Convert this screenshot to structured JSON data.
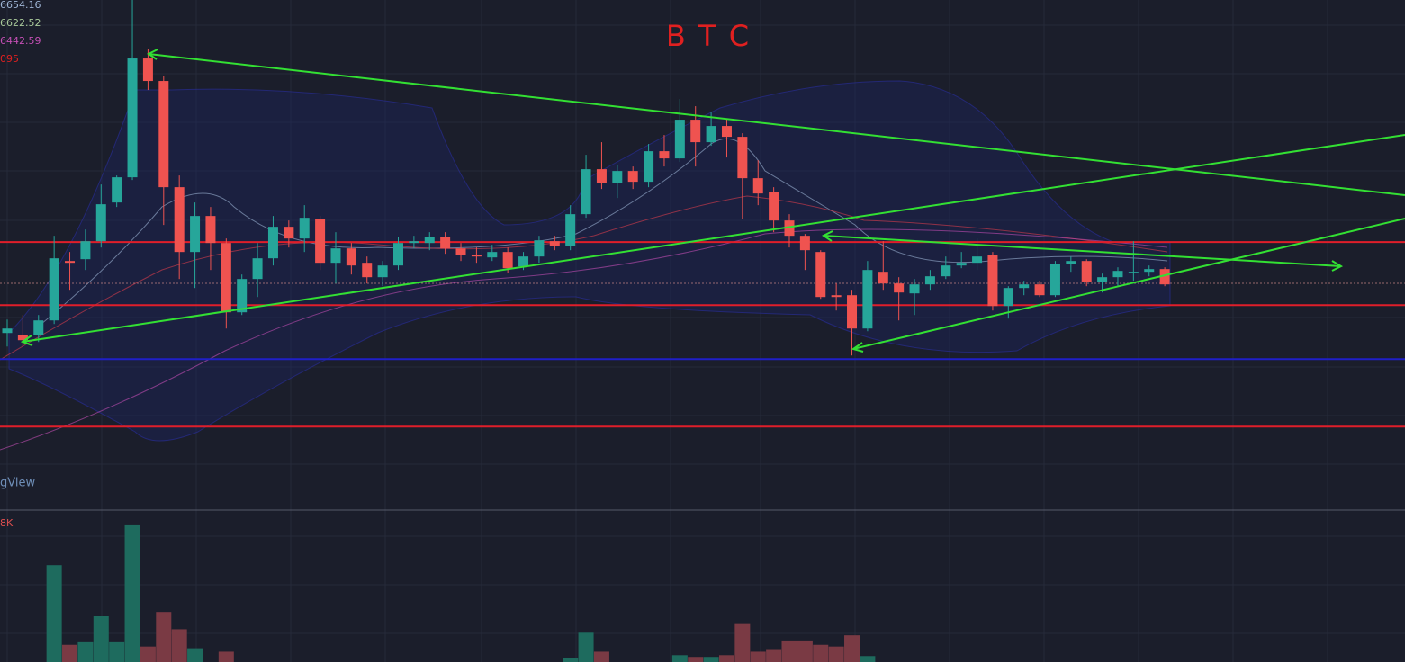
{
  "chart_data": {
    "type": "candlestick",
    "title": "B T C",
    "indicator_labels": [
      {
        "text": "6654.16",
        "color": "#9fb6d6"
      },
      {
        "text": "6622.52",
        "color": "#a9c99a"
      },
      {
        "text": "6442.59",
        "color": "#c44fb5"
      },
      {
        "text": "095",
        "color": "#e02020"
      }
    ],
    "watermark": "gView",
    "ylim": [
      5800,
      7500
    ],
    "up_color": "#26a69a",
    "down_color": "#ef5350",
    "open": [
      6390,
      6384,
      6384,
      6432,
      6630,
      6636,
      6696,
      6825,
      6909,
      7305,
      7230,
      6876,
      6660,
      6780,
      6690,
      6459,
      6570,
      6639,
      6744,
      6705,
      6771,
      6624,
      6672,
      6624,
      6576,
      6615,
      6690,
      6690,
      6711,
      6672,
      6651,
      6642,
      6660,
      6612,
      6645,
      6696,
      6681,
      6786,
      6936,
      6891,
      6930,
      6894,
      6996,
      6972,
      7101,
      7026,
      7080,
      7044,
      6906,
      6861,
      6765,
      6714,
      6660,
      6516,
      6516,
      6405,
      6594,
      6555,
      6522,
      6552,
      6579,
      6615,
      6624,
      6651,
      6480,
      6540,
      6552,
      6516,
      6621,
      6630,
      6561,
      6576,
      6594,
      6594,
      6603
    ],
    "high": [
      6435,
      6450,
      6450,
      6714,
      6660,
      6735,
      6885,
      6915,
      7500,
      7335,
      7245,
      6915,
      6825,
      6810,
      6705,
      6585,
      6690,
      6780,
      6765,
      6816,
      6780,
      6726,
      6690,
      6645,
      6630,
      6711,
      6714,
      6726,
      6726,
      6690,
      6675,
      6684,
      6675,
      6660,
      6714,
      6714,
      6816,
      6984,
      7026,
      6951,
      6945,
      7020,
      7050,
      7170,
      7146,
      7125,
      7104,
      7056,
      6966,
      6876,
      6786,
      6720,
      6666,
      6555,
      6534,
      6630,
      6696,
      6576,
      6570,
      6600,
      6645,
      6660,
      6705,
      6660,
      6546,
      6564,
      6564,
      6630,
      6645,
      6636,
      6588,
      6609,
      6696,
      6615,
      6609
    ],
    "low": [
      6345,
      6345,
      6360,
      6420,
      6534,
      6600,
      6675,
      6810,
      6900,
      7200,
      6750,
      6570,
      6540,
      6600,
      6405,
      6450,
      6510,
      6615,
      6675,
      6660,
      6600,
      6555,
      6585,
      6555,
      6546,
      6600,
      6672,
      6666,
      6654,
      6630,
      6624,
      6630,
      6591,
      6600,
      6624,
      6666,
      6666,
      6774,
      6870,
      6840,
      6870,
      6876,
      6945,
      6960,
      6945,
      7014,
      6975,
      6771,
      6816,
      6726,
      6675,
      6600,
      6504,
      6465,
      6315,
      6396,
      6534,
      6432,
      6450,
      6534,
      6570,
      6606,
      6600,
      6465,
      6438,
      6516,
      6510,
      6510,
      6594,
      6546,
      6525,
      6546,
      6564,
      6579,
      6546
    ],
    "close": [
      6405,
      6366,
      6432,
      6639,
      6624,
      6696,
      6819,
      6909,
      7305,
      7230,
      6876,
      6660,
      6780,
      6690,
      6459,
      6570,
      6639,
      6744,
      6705,
      6774,
      6624,
      6672,
      6615,
      6576,
      6615,
      6690,
      6696,
      6711,
      6672,
      6651,
      6645,
      6660,
      6606,
      6645,
      6699,
      6681,
      6786,
      6936,
      6891,
      6930,
      6894,
      6996,
      6972,
      7101,
      7026,
      7080,
      7044,
      6906,
      6855,
      6765,
      6714,
      6666,
      6510,
      6510,
      6405,
      6600,
      6555,
      6525,
      6552,
      6579,
      6615,
      6624,
      6645,
      6480,
      6540,
      6552,
      6516,
      6621,
      6630,
      6561,
      6576,
      6597,
      6594,
      6603,
      6552
    ],
    "levels": [
      {
        "value": 6693,
        "color": "#e01e2a"
      },
      {
        "value": 6483,
        "color": "#e01e2a"
      },
      {
        "value": 6078,
        "color": "#e01e2a"
      },
      {
        "value": 6303,
        "color": "#1f1fc8"
      }
    ],
    "volume": {
      "values": [
        null,
        null,
        null,
        5600,
        1000,
        1150,
        2650,
        1150,
        7900,
        900,
        2900,
        1900,
        800,
        null,
        600,
        null,
        null,
        null,
        null,
        null,
        null,
        null,
        null,
        null,
        null,
        null,
        null,
        null,
        null,
        null,
        null,
        null,
        null,
        null,
        null,
        null,
        250,
        1700,
        600,
        null,
        null,
        null,
        null,
        400,
        300,
        300,
        400,
        2200,
        600,
        700,
        1200,
        1200,
        1000,
        900,
        1550,
        350,
        null,
        null,
        null,
        null,
        null,
        null,
        null,
        null,
        null,
        null,
        null,
        null,
        null,
        null,
        null,
        null,
        null,
        null,
        null
      ],
      "colors": {
        "up": "#1e6b5e",
        "down": "#7a3a44"
      },
      "ylim": [
        0,
        8000
      ],
      "yticks": [
        {
          "value": 8000,
          "label": "8K"
        }
      ]
    }
  }
}
